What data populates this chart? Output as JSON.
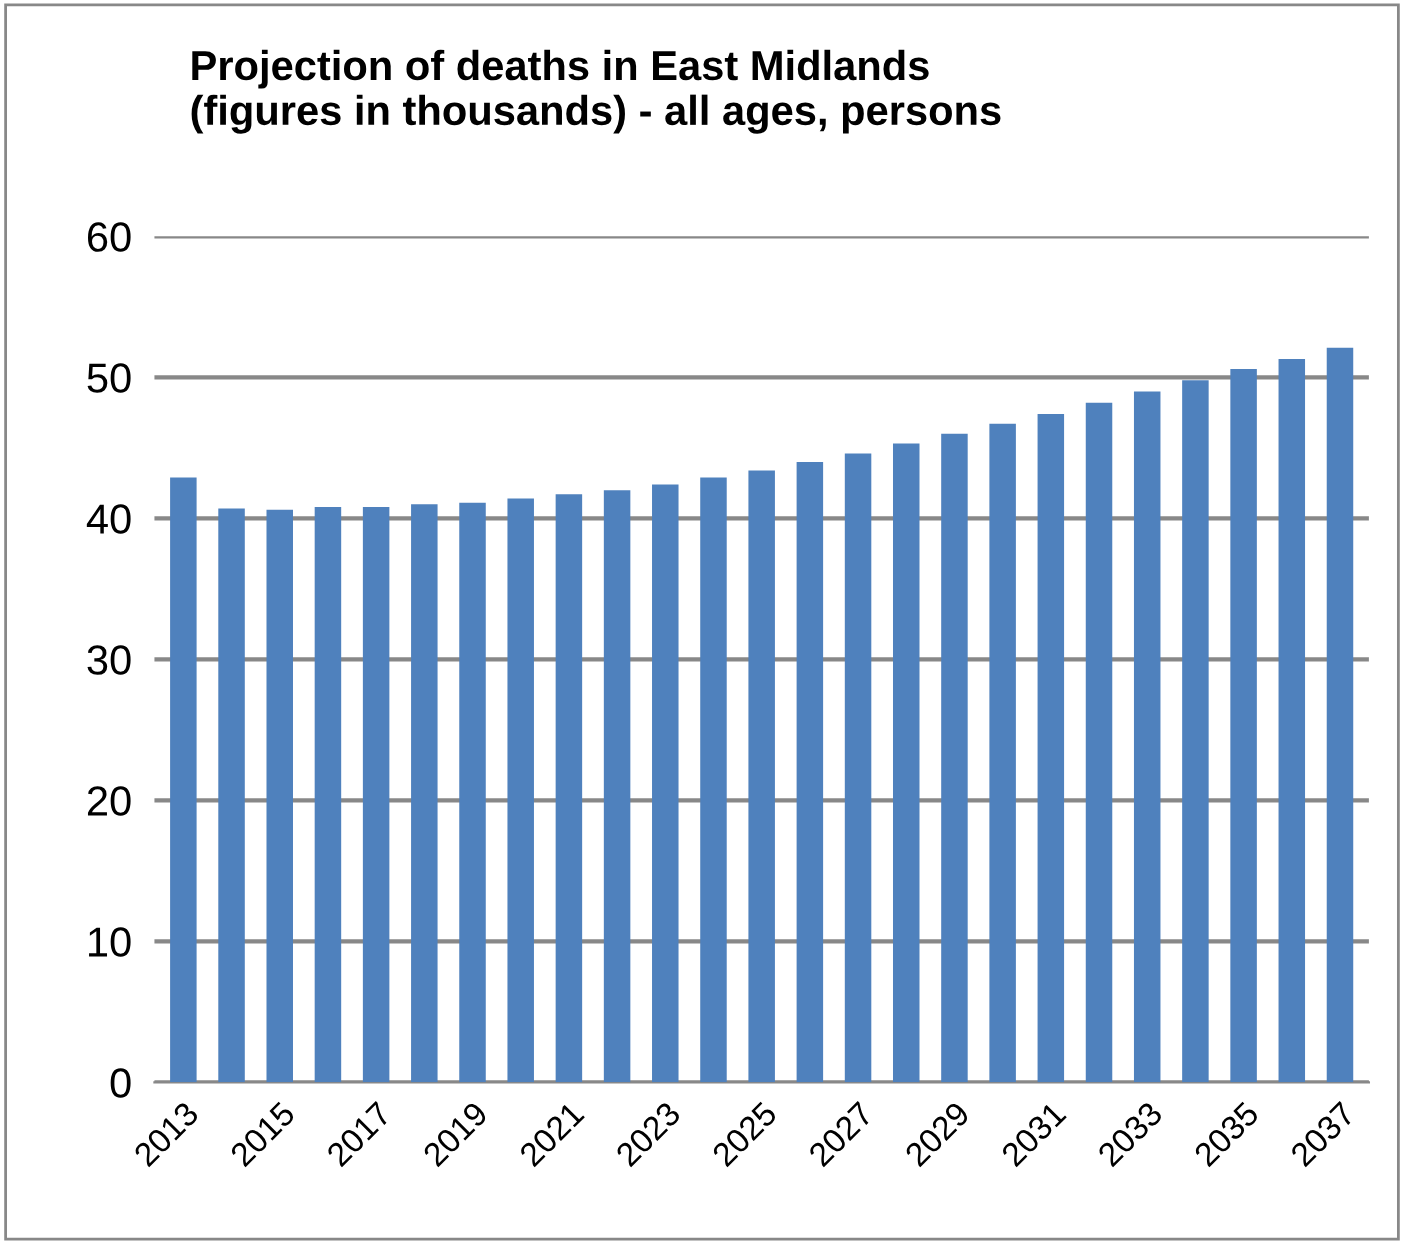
{
  "chart_data": {
    "type": "bar",
    "title": "Projection of deaths in East Midlands\n(figures in thousands) - all ages, persons",
    "categories": [
      "2013",
      null,
      "2015",
      null,
      "2017",
      null,
      "2019",
      null,
      "2021",
      null,
      "2023",
      null,
      "2025",
      null,
      "2027",
      null,
      "2029",
      null,
      "2031",
      null,
      "2033",
      null,
      "2035",
      null,
      "2037"
    ],
    "values": [
      42.9,
      40.7,
      40.6,
      40.8,
      40.8,
      41.0,
      41.1,
      41.4,
      41.7,
      42.0,
      42.4,
      42.9,
      43.4,
      44.0,
      44.6,
      45.3,
      46.0,
      46.7,
      47.4,
      48.2,
      49.0,
      49.8,
      50.6,
      51.3,
      52.1
    ],
    "color": "#4f81bd",
    "ylim": [
      0,
      60
    ],
    "yticks": [
      0,
      10,
      20,
      30,
      40,
      50,
      60
    ],
    "grid": "y",
    "legend": false
  }
}
